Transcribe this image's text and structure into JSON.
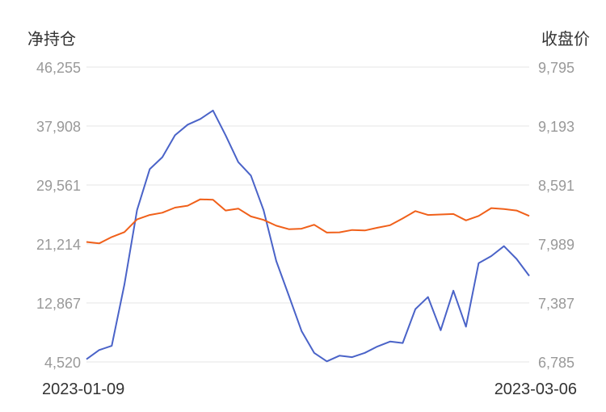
{
  "chart_data": {
    "type": "line",
    "left_axis": {
      "title": "净持仓",
      "ticks": [
        "46,255",
        "37,908",
        "29,561",
        "21,214",
        "12,867",
        "4,520"
      ],
      "ylim": [
        4520,
        46255
      ]
    },
    "right_axis": {
      "title": "收盘价",
      "ticks": [
        "9,795",
        "9,193",
        "8,591",
        "7,989",
        "7,387",
        "6,785"
      ],
      "ylim": [
        6785,
        9795
      ]
    },
    "x_labels": [
      "2023-01-09",
      "2023-03-06"
    ],
    "grid": true,
    "colors": {
      "net_position": "#4a63c8",
      "close_price": "#f0601a"
    },
    "series": [
      {
        "axis": "left",
        "color": "#4a63c8",
        "values": [
          4900,
          6200,
          6800,
          15500,
          26000,
          31800,
          33500,
          36600,
          38100,
          38900,
          40100,
          36600,
          32800,
          30900,
          26000,
          18800,
          13900,
          8900,
          5800,
          4600,
          5400,
          5200,
          5800,
          6700,
          7400,
          7200,
          12000,
          13700,
          9000,
          14600,
          9500,
          18500,
          19500,
          20900,
          19100,
          16700
        ]
      },
      {
        "axis": "right",
        "color": "#f0601a",
        "values": [
          8010,
          7995,
          8060,
          8110,
          8240,
          8285,
          8308,
          8360,
          8380,
          8445,
          8440,
          8330,
          8350,
          8270,
          8235,
          8175,
          8140,
          8145,
          8185,
          8105,
          8108,
          8132,
          8127,
          8155,
          8180,
          8250,
          8325,
          8285,
          8290,
          8295,
          8230,
          8275,
          8355,
          8345,
          8330,
          8275
        ]
      }
    ]
  }
}
